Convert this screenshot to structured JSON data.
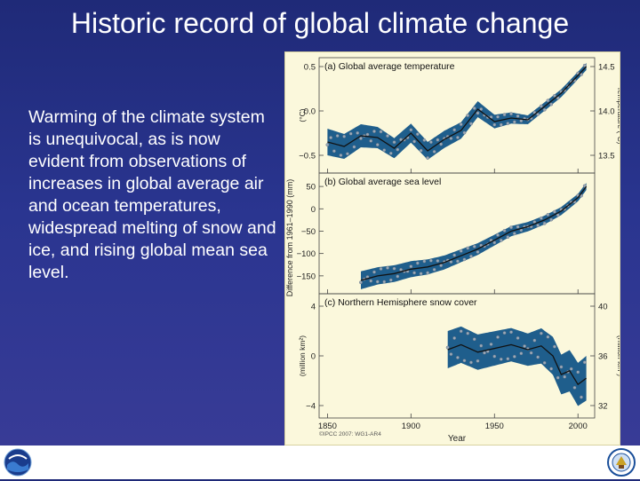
{
  "slide": {
    "title": "Historic record of global climate change",
    "body": "Warming of the climate system is unequivocal, as is now evident from observations of increases in global average air and ocean temperatures, widespread melting of snow and ice, and rising global mean sea level."
  },
  "figure": {
    "left_axis_label": "Difference from 1961–1990",
    "credit": "©IPCC 2007: WG1-AR4",
    "xlabel": "Year",
    "xticks": [
      "1850",
      "1900",
      "1950",
      "2000"
    ],
    "colors": {
      "band": "#1f5e8c",
      "points": "#9aa8b8",
      "line": "#111111",
      "background": "#fbf8dc"
    }
  },
  "logos": {
    "left": "noaa-logo",
    "right": "department-of-commerce-seal"
  },
  "chart_data": [
    {
      "type": "line",
      "title": "(a) Global average temperature",
      "ylabel": "(°C)",
      "ylabel_right": "Temperature (°C)",
      "xlim": [
        1845,
        2010
      ],
      "ylim": [
        -0.7,
        0.6
      ],
      "yticks_left": [
        "0.5",
        "0.0",
        "−0.5"
      ],
      "yticks_right": [
        "14.5",
        "14.0",
        "13.5"
      ],
      "series": [
        {
          "x": [
            1850,
            1860,
            1870,
            1880,
            1890,
            1900,
            1910,
            1920,
            1930,
            1940,
            1950,
            1960,
            1970,
            1980,
            1990,
            2000,
            2005
          ],
          "values": [
            -0.35,
            -0.4,
            -0.28,
            -0.3,
            -0.42,
            -0.25,
            -0.45,
            -0.32,
            -0.22,
            0.02,
            -0.12,
            -0.08,
            -0.1,
            0.05,
            0.2,
            0.4,
            0.5
          ]
        }
      ],
      "band": {
        "x": [
          1850,
          1880,
          1910,
          1940,
          1970,
          2005
        ],
        "half_width": [
          0.15,
          0.12,
          0.1,
          0.09,
          0.05,
          0.04
        ]
      }
    },
    {
      "type": "line",
      "title": "(b) Global average sea level",
      "ylabel": "(mm)",
      "xlim": [
        1845,
        2010
      ],
      "ylim": [
        -190,
        80
      ],
      "yticks_left": [
        "50",
        "0",
        "−50",
        "−100",
        "−150"
      ],
      "series": [
        {
          "x": [
            1870,
            1880,
            1890,
            1900,
            1910,
            1920,
            1930,
            1940,
            1950,
            1960,
            1970,
            1980,
            1990,
            2000,
            2005
          ],
          "values": [
            -160,
            -150,
            -145,
            -135,
            -130,
            -120,
            -105,
            -90,
            -70,
            -50,
            -40,
            -25,
            -5,
            25,
            50
          ]
        }
      ],
      "band": {
        "x": [
          1870,
          1900,
          1950,
          2005
        ],
        "half_width": [
          20,
          18,
          12,
          8
        ]
      }
    },
    {
      "type": "line",
      "title": "(c) Northern Hemisphere snow cover",
      "ylabel": "(million km²)",
      "ylabel_right": "(million km²)",
      "xlim": [
        1845,
        2010
      ],
      "ylim": [
        -5,
        5
      ],
      "yticks_left": [
        "4",
        "0",
        "−4"
      ],
      "yticks_right": [
        "40",
        "36",
        "32"
      ],
      "series": [
        {
          "x": [
            1922,
            1930,
            1940,
            1950,
            1960,
            1970,
            1978,
            1985,
            1990,
            1995,
            2000,
            2005
          ],
          "values": [
            0.5,
            0.9,
            0.3,
            0.6,
            0.9,
            0.5,
            0.8,
            0.0,
            -1.5,
            -1.2,
            -2.3,
            -1.8
          ]
        }
      ],
      "band": {
        "x": [
          1922,
          1970,
          1990,
          2005
        ],
        "half_width": [
          1.5,
          1.3,
          1.6,
          1.8
        ]
      }
    }
  ]
}
